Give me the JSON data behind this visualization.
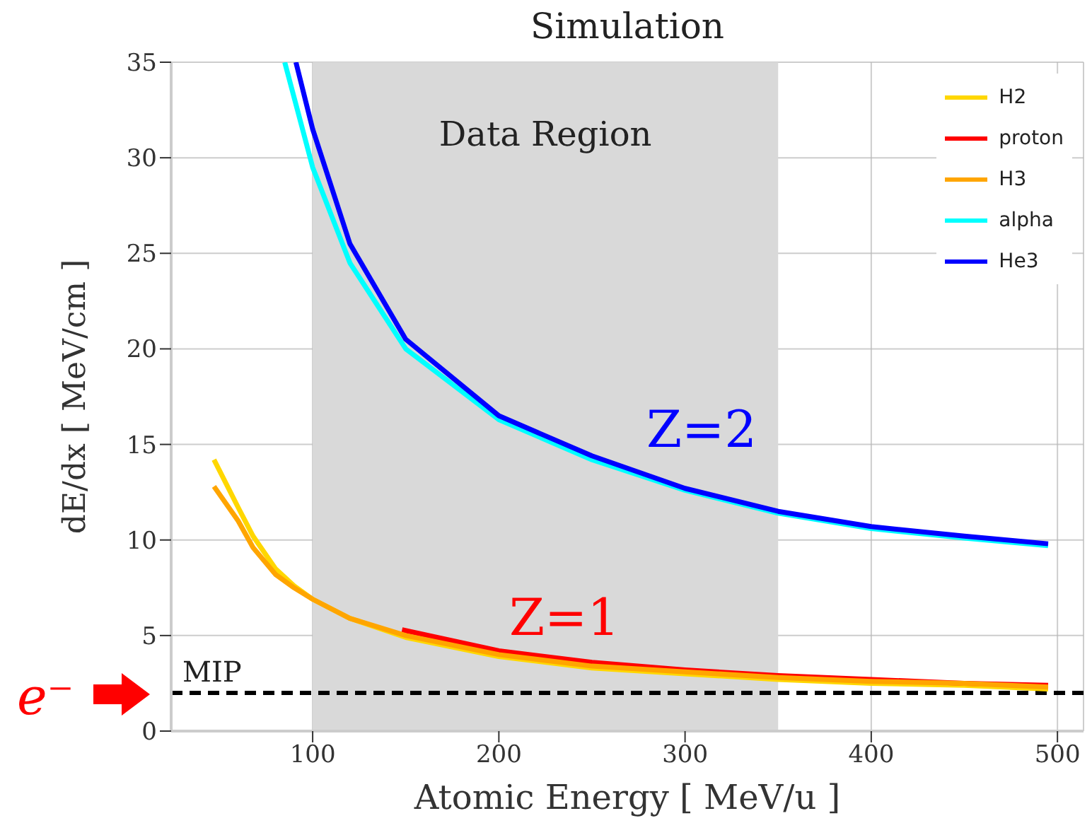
{
  "chart_data": {
    "type": "line",
    "title": "Simulation",
    "xlabel": "Atomic Energy [ MeV/u ]",
    "ylabel": "dE/dx [ MeV/cm ]",
    "xlim": [
      24,
      514
    ],
    "xticks": [
      100,
      200,
      300,
      400,
      500
    ],
    "ylim": [
      0,
      35
    ],
    "yticks": [
      0,
      5,
      10,
      15,
      20,
      25,
      30,
      35
    ],
    "grid": true,
    "legend": "top right",
    "line_style": "solid",
    "marker": "none",
    "series": [
      {
        "name": "H2",
        "color": "#ffd700",
        "x": [
          47,
          60,
          68,
          80,
          90,
          100,
          120,
          150,
          200,
          250,
          300,
          350,
          400,
          450,
          495
        ],
        "values": [
          14.2,
          11.7,
          10.2,
          8.5,
          7.6,
          6.9,
          5.9,
          4.9,
          3.9,
          3.3,
          3.0,
          2.7,
          2.5,
          2.4,
          2.2
        ]
      },
      {
        "name": "proton",
        "color": "#ff0000",
        "x": [
          148,
          200,
          250,
          300,
          350,
          400,
          450,
          495
        ],
        "values": [
          5.3,
          4.2,
          3.6,
          3.2,
          2.9,
          2.7,
          2.5,
          2.4
        ]
      },
      {
        "name": "H3",
        "color": "#ffa500",
        "x": [
          47,
          60,
          68,
          80,
          90,
          100,
          120,
          150,
          200,
          250,
          300,
          350,
          400,
          450,
          495
        ],
        "values": [
          12.8,
          11.0,
          9.6,
          8.2,
          7.5,
          6.9,
          5.9,
          5.0,
          4.0,
          3.4,
          3.1,
          2.8,
          2.6,
          2.5,
          2.3
        ]
      },
      {
        "name": "alpha",
        "color": "#00ffff",
        "x": [
          85,
          100,
          120,
          150,
          200,
          250,
          300,
          350,
          400,
          450,
          495
        ],
        "values": [
          35,
          29.5,
          24.5,
          20.0,
          16.3,
          14.2,
          12.6,
          11.4,
          10.6,
          10.1,
          9.7
        ]
      },
      {
        "name": "He3",
        "color": "#0000ff",
        "x": [
          91,
          100,
          120,
          150,
          200,
          250,
          300,
          350,
          400,
          450,
          495
        ],
        "values": [
          35,
          31.5,
          25.5,
          20.5,
          16.5,
          14.4,
          12.7,
          11.5,
          10.7,
          10.2,
          9.8
        ]
      }
    ],
    "bands": [
      {
        "axis": "x",
        "from": 100,
        "to": 350,
        "label": "Data Region",
        "color": "#d9d9d9"
      }
    ],
    "ref_lines": [
      {
        "axis": "y",
        "value": 2,
        "label": "MIP",
        "color": "#000000",
        "line_style": "dashed"
      }
    ],
    "annotations": [
      "e⁻",
      "Z=2",
      "Z=1"
    ]
  }
}
